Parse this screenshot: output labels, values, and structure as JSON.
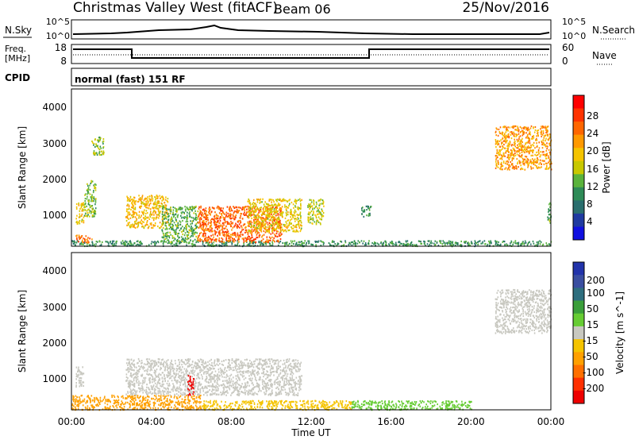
{
  "header": {
    "station": "Christmas Valley West (fitACF)",
    "beam": "Beam 06",
    "date": "25/Nov/2016"
  },
  "panels": {
    "nsky": {
      "label": "N.Sky",
      "left_ticks": [
        "10^5",
        "10^0"
      ],
      "right_ticks": [
        "10^5",
        "10^0"
      ],
      "right_label": "N.Search"
    },
    "freq": {
      "label_line1": "Freq.",
      "label_line2": "[MHz]",
      "left_ticks": [
        "18",
        "8"
      ],
      "right_ticks": [
        "60",
        "0"
      ],
      "right_label": "Nave"
    },
    "cpid": {
      "label": "CPID",
      "value": "normal (fast) 151 RF"
    }
  },
  "colorbars": {
    "power": {
      "label": "Power [dB]",
      "ticks": [
        "28",
        "24",
        "20",
        "16",
        "12",
        "8",
        "4"
      ],
      "colors": [
        "#ff0000",
        "#ff3300",
        "#ff6600",
        "#ff9900",
        "#f5c400",
        "#c8c800",
        "#5ab33c",
        "#2e8b57",
        "#2a6e6e",
        "#1f3aa0",
        "#1010e0"
      ]
    },
    "velocity": {
      "label": "Velocity [m s^-1]",
      "ticks": [
        "200",
        "100",
        "50",
        "15",
        "-15",
        "-50",
        "-100",
        "-200"
      ],
      "colors": [
        "#2233aa",
        "#3a4ea0",
        "#2e6e7e",
        "#3a9e3a",
        "#66cc33",
        "#c8c8c0",
        "#f5c400",
        "#ffa000",
        "#ff7000",
        "#ff3000",
        "#ee0000"
      ]
    }
  },
  "axes": {
    "ylabel": "Slant Range [km]",
    "yticks": [
      "4000",
      "3000",
      "2000",
      "1000"
    ],
    "xticks": [
      "00:00",
      "04:00",
      "08:00",
      "12:00",
      "16:00",
      "20:00",
      "00:00"
    ],
    "xlabel": "Time UT"
  },
  "chart_data": {
    "type": "heatmap",
    "x_range_hours": [
      0,
      24
    ],
    "y_range_km": [
      180,
      4500
    ],
    "frequency_schedule": [
      {
        "start": "00:00",
        "end": "03:00",
        "freq_mhz": 16
      },
      {
        "start": "03:00",
        "end": "15:00",
        "freq_mhz": 10
      },
      {
        "start": "15:00",
        "end": "24:00",
        "freq_mhz": 16
      }
    ],
    "power_regions": [
      {
        "t0": 0.0,
        "t1": 24.0,
        "r0": 200,
        "r1": 350,
        "power_db": 10
      },
      {
        "t0": 0.2,
        "t1": 1.0,
        "r0": 300,
        "r1": 500,
        "power_db": 25
      },
      {
        "t0": 0.2,
        "t1": 0.6,
        "r0": 800,
        "r1": 1400,
        "power_db": 18
      },
      {
        "t0": 0.6,
        "t1": 1.2,
        "r0": 1000,
        "r1": 2000,
        "power_db": 14
      },
      {
        "t0": 1.0,
        "t1": 1.6,
        "r0": 2700,
        "r1": 3200,
        "power_db": 14
      },
      {
        "t0": 2.7,
        "t1": 4.8,
        "r0": 700,
        "r1": 1600,
        "power_db": 20
      },
      {
        "t0": 4.5,
        "t1": 6.3,
        "r0": 300,
        "r1": 1300,
        "power_db": 12
      },
      {
        "t0": 6.3,
        "t1": 10.5,
        "r0": 300,
        "r1": 1300,
        "power_db": 26
      },
      {
        "t0": 8.8,
        "t1": 11.5,
        "r0": 600,
        "r1": 1500,
        "power_db": 18
      },
      {
        "t0": 11.8,
        "t1": 12.6,
        "r0": 800,
        "r1": 1500,
        "power_db": 16
      },
      {
        "t0": 14.5,
        "t1": 15.0,
        "r0": 1000,
        "r1": 1300,
        "power_db": 10
      },
      {
        "t0": 21.2,
        "t1": 24.0,
        "r0": 2300,
        "r1": 3500,
        "power_db": 22
      },
      {
        "t0": 23.8,
        "t1": 24.0,
        "r0": 800,
        "r1": 1400,
        "power_db": 12
      }
    ],
    "velocity_regions": [
      {
        "t0": 0.0,
        "t1": 6.5,
        "r0": 200,
        "r1": 600,
        "velocity": -60
      },
      {
        "t0": 6.5,
        "t1": 14.0,
        "r0": 200,
        "r1": 450,
        "velocity": -40
      },
      {
        "t0": 14.0,
        "t1": 20.0,
        "r0": 200,
        "r1": 450,
        "velocity": 20
      },
      {
        "t0": 0.2,
        "t1": 0.6,
        "r0": 800,
        "r1": 1400,
        "velocity": 0
      },
      {
        "t0": 2.7,
        "t1": 11.5,
        "r0": 600,
        "r1": 1600,
        "velocity": 0
      },
      {
        "t0": 5.8,
        "t1": 6.1,
        "r0": 600,
        "r1": 1150,
        "velocity": -180
      },
      {
        "t0": 21.2,
        "t1": 24.0,
        "r0": 2300,
        "r1": 3500,
        "velocity": 0
      }
    ]
  }
}
